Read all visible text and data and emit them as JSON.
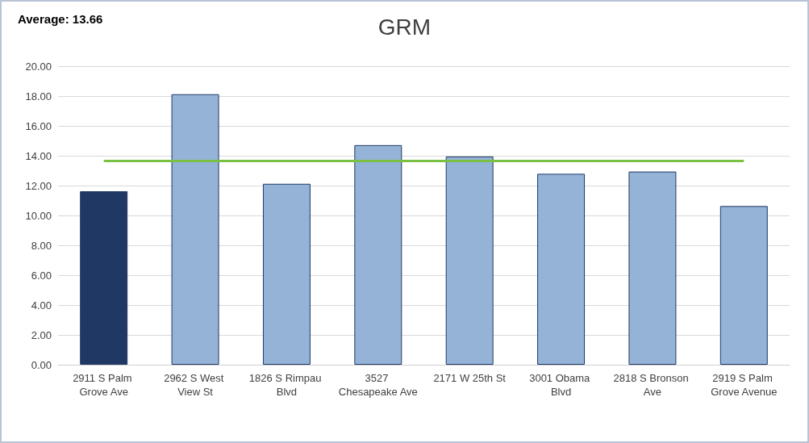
{
  "chart_data": {
    "type": "bar",
    "title": "GRM",
    "categories": [
      "2911 S Palm Grove Ave",
      "2962 S West View St",
      "1826 S Rimpau Blvd",
      "3527 Chesapeake Ave",
      "2171 W 25th St",
      "3001 Obama Blvd",
      "2818 S Bronson Ave",
      "2919 S Palm Grove Avenue"
    ],
    "values": [
      11.62,
      18.12,
      12.12,
      14.71,
      13.95,
      12.79,
      12.94,
      10.63
    ],
    "colors": [
      "#203864",
      "#95b3d7",
      "#95b3d7",
      "#95b3d7",
      "#95b3d7",
      "#95b3d7",
      "#95b3d7",
      "#95b3d7"
    ],
    "ylim": [
      0,
      20
    ],
    "yticks": [
      {
        "value": 0,
        "label": "0.00"
      },
      {
        "value": 2,
        "label": "2.00"
      },
      {
        "value": 4,
        "label": "4.00"
      },
      {
        "value": 6,
        "label": "6.00"
      },
      {
        "value": 8,
        "label": "8.00"
      },
      {
        "value": 10,
        "label": "10.00"
      },
      {
        "value": 12,
        "label": "12.00"
      },
      {
        "value": 14,
        "label": "14.00"
      },
      {
        "value": 16,
        "label": "16.00"
      },
      {
        "value": 18,
        "label": "18.00"
      },
      {
        "value": 20,
        "label": "20.00"
      }
    ],
    "grid": "y",
    "annotations": [
      "Average: 13.66"
    ],
    "ref_lines": [
      {
        "axis": "y",
        "value": 13.66,
        "color": "#7ac143"
      }
    ]
  }
}
